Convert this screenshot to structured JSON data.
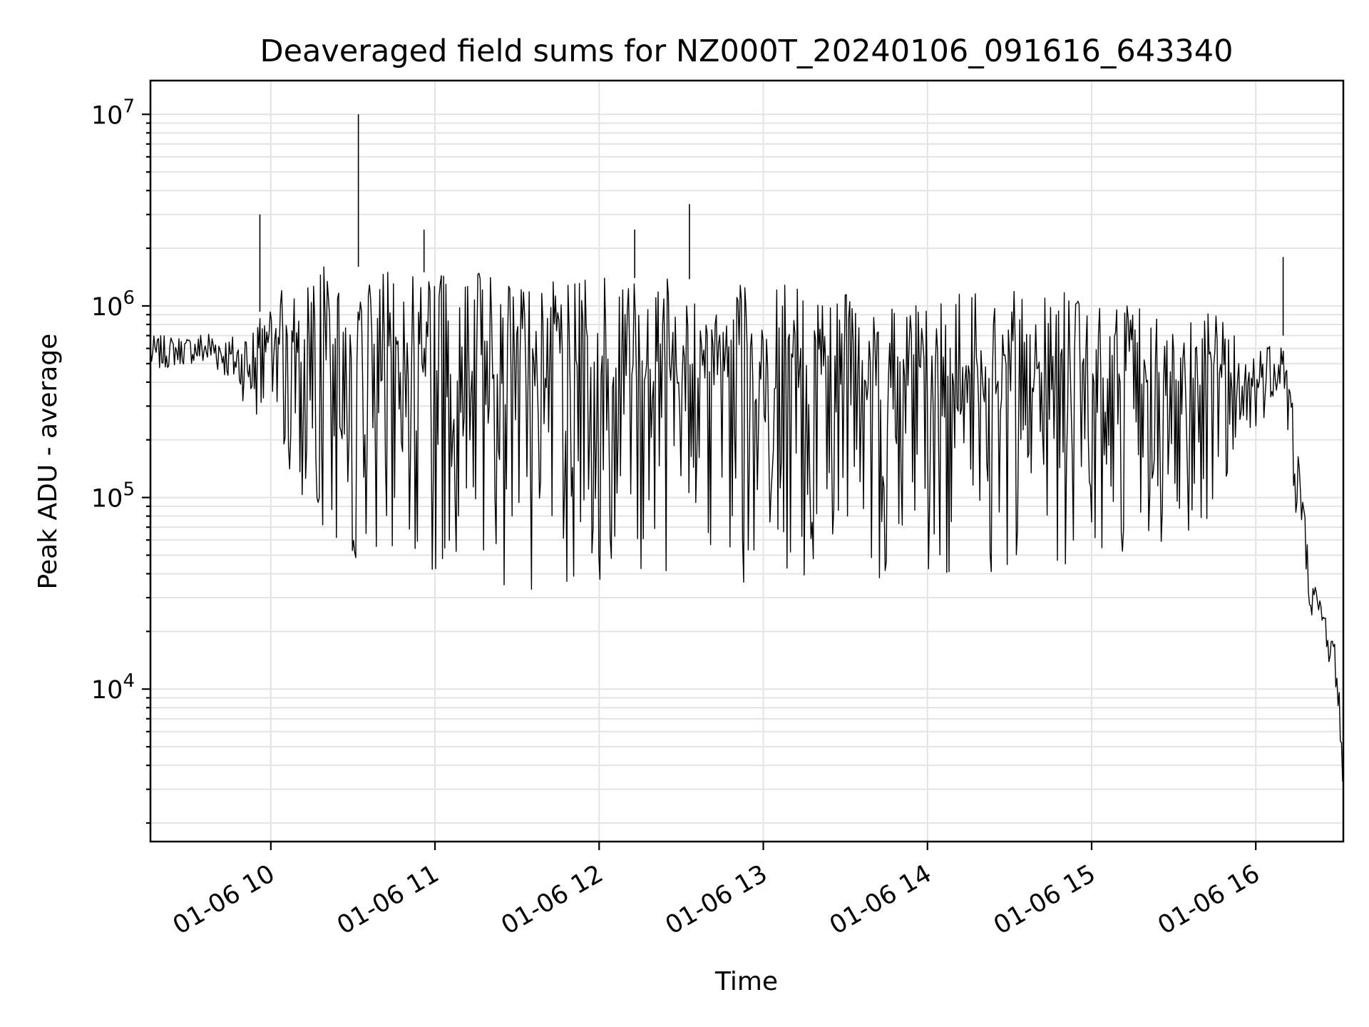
{
  "chart_data": {
    "type": "line",
    "title": "Deaveraged field sums for NZ000T_20240106_091616_643340",
    "xlabel": "Time",
    "ylabel": "Peak ADU - average",
    "yscale": "log",
    "ylim": [
      1600,
      15000000
    ],
    "xlim": [
      "2024-01-06 09:16",
      "2024-01-06 16:32"
    ],
    "grid": true,
    "x_ticks": [
      "2024-01-06 10:00",
      "2024-01-06 11:00",
      "2024-01-06 12:00",
      "2024-01-06 13:00",
      "2024-01-06 14:00",
      "2024-01-06 15:00",
      "2024-01-06 16:00"
    ],
    "x_tick_labels": [
      "01-06 10",
      "01-06 11",
      "01-06 12",
      "01-06 13",
      "01-06 14",
      "01-06 15",
      "01-06 16"
    ],
    "y_ticks": [
      10000,
      100000,
      1000000,
      10000000
    ],
    "y_tick_base": "10",
    "y_tick_exponents": [
      "4",
      "5",
      "6",
      "7"
    ],
    "line_color": "#000000",
    "series": [
      {
        "x": [
          "09:16",
          "09:30",
          "09:40",
          "09:45",
          "09:55",
          "10:05",
          "10:15",
          "10:25",
          "10:35",
          "10:45",
          "11:00",
          "11:15",
          "11:30",
          "11:45",
          "12:00",
          "12:15",
          "12:30",
          "12:45",
          "13:00",
          "13:15",
          "13:30",
          "13:45",
          "14:00",
          "14:15",
          "14:30",
          "14:45",
          "15:00",
          "15:15",
          "15:30",
          "15:45",
          "15:55",
          "16:05",
          "16:10",
          "16:15",
          "16:20",
          "16:25",
          "16:30",
          "16:32"
        ],
        "envelope_high": [
          700000,
          700000,
          800000,
          700000,
          900000,
          1300000,
          1600000,
          1600000,
          1600000,
          1500000,
          1500000,
          1500000,
          1500000,
          1400000,
          1400000,
          1400000,
          1400000,
          1300000,
          1300000,
          1300000,
          1300000,
          1300000,
          1200000,
          1200000,
          1200000,
          1200000,
          1200000,
          1000000,
          1000000,
          900000,
          700000,
          700000,
          700000,
          300000,
          40000,
          28000,
          16000,
          4000
        ],
        "envelope_low": [
          450000,
          500000,
          450000,
          400000,
          250000,
          120000,
          80000,
          50000,
          45000,
          40000,
          35000,
          32000,
          32000,
          33000,
          33000,
          33000,
          33000,
          35000,
          35000,
          35000,
          35000,
          38000,
          40000,
          40000,
          35000,
          38000,
          50000,
          50000,
          60000,
          80000,
          150000,
          300000,
          400000,
          60000,
          25000,
          18000,
          8000,
          2500
        ],
        "spikes": [
          {
            "x": "09:56",
            "y": 3000000
          },
          {
            "x": "10:32",
            "y": 10000000
          },
          {
            "x": "10:56",
            "y": 2500000
          },
          {
            "x": "12:13",
            "y": 2500000
          },
          {
            "x": "12:33",
            "y": 3400000
          },
          {
            "x": "16:10",
            "y": 1800000
          }
        ]
      }
    ]
  }
}
